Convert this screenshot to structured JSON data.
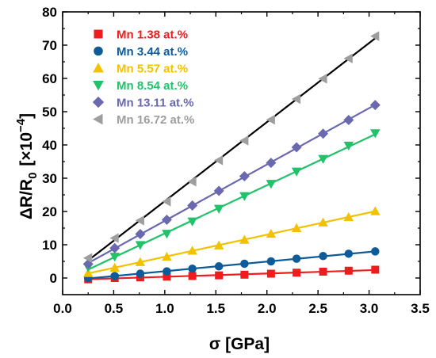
{
  "chart_data": {
    "type": "scatter",
    "xlabel": "σ [GPa]",
    "ylabel_main": "ΔR/R",
    "ylabel_sub": "0",
    "ylabel_unit": "[×10",
    "ylabel_exp": "−4",
    "ylabel_close": "]",
    "xlim": [
      0.0,
      3.5
    ],
    "ylim": [
      -5,
      80
    ],
    "xticks": [
      "0.0",
      "0.5",
      "1.0",
      "1.5",
      "2.0",
      "2.5",
      "3.0",
      "3.5"
    ],
    "yticks": [
      "0",
      "10",
      "20",
      "30",
      "40",
      "50",
      "60",
      "70",
      "80"
    ],
    "grid": false,
    "legend_position": "top-left",
    "x": [
      0.25,
      0.51,
      0.76,
      1.02,
      1.27,
      1.53,
      1.78,
      2.04,
      2.29,
      2.55,
      2.8,
      3.06
    ],
    "series": [
      {
        "name": "Mn 1.38 at.%",
        "color": "#ee1c1c",
        "marker": "square",
        "values": [
          -0.4,
          0.0,
          0.2,
          0.4,
          0.6,
          0.8,
          1.0,
          1.3,
          1.6,
          1.9,
          2.2,
          2.5
        ]
      },
      {
        "name": "Mn 3.44 at.%",
        "color": "#0d5c99",
        "marker": "circle",
        "values": [
          0.0,
          0.6,
          1.3,
          2.0,
          2.8,
          3.5,
          4.3,
          5.0,
          5.8,
          6.6,
          7.3,
          8.0
        ]
      },
      {
        "name": "Mn 5.57 at.%",
        "color": "#f2c200",
        "marker": "triangle-up",
        "values": [
          1.5,
          3.1,
          4.8,
          6.4,
          8.2,
          9.8,
          11.5,
          13.3,
          15.0,
          16.7,
          18.3,
          20.1
        ]
      },
      {
        "name": "Mn 8.54 at.%",
        "color": "#21c26a",
        "marker": "triangle-down",
        "values": [
          3.2,
          6.4,
          9.9,
          13.3,
          17.0,
          20.8,
          24.6,
          28.3,
          32.0,
          35.8,
          39.8,
          43.5
        ]
      },
      {
        "name": "Mn 13.11 at.%",
        "color": "#6a68ae",
        "marker": "diamond",
        "values": [
          4.2,
          9.0,
          13.2,
          17.5,
          21.8,
          26.2,
          30.6,
          34.6,
          39.3,
          43.4,
          47.5,
          52.0
        ]
      },
      {
        "name": "Mn 16.72 at.%",
        "color": "#9e9e9e",
        "marker": "triangle-left",
        "values": [
          6.0,
          12.0,
          17.3,
          23.0,
          29.0,
          35.4,
          41.3,
          47.6,
          53.8,
          59.9,
          66.0,
          72.7
        ]
      }
    ]
  }
}
